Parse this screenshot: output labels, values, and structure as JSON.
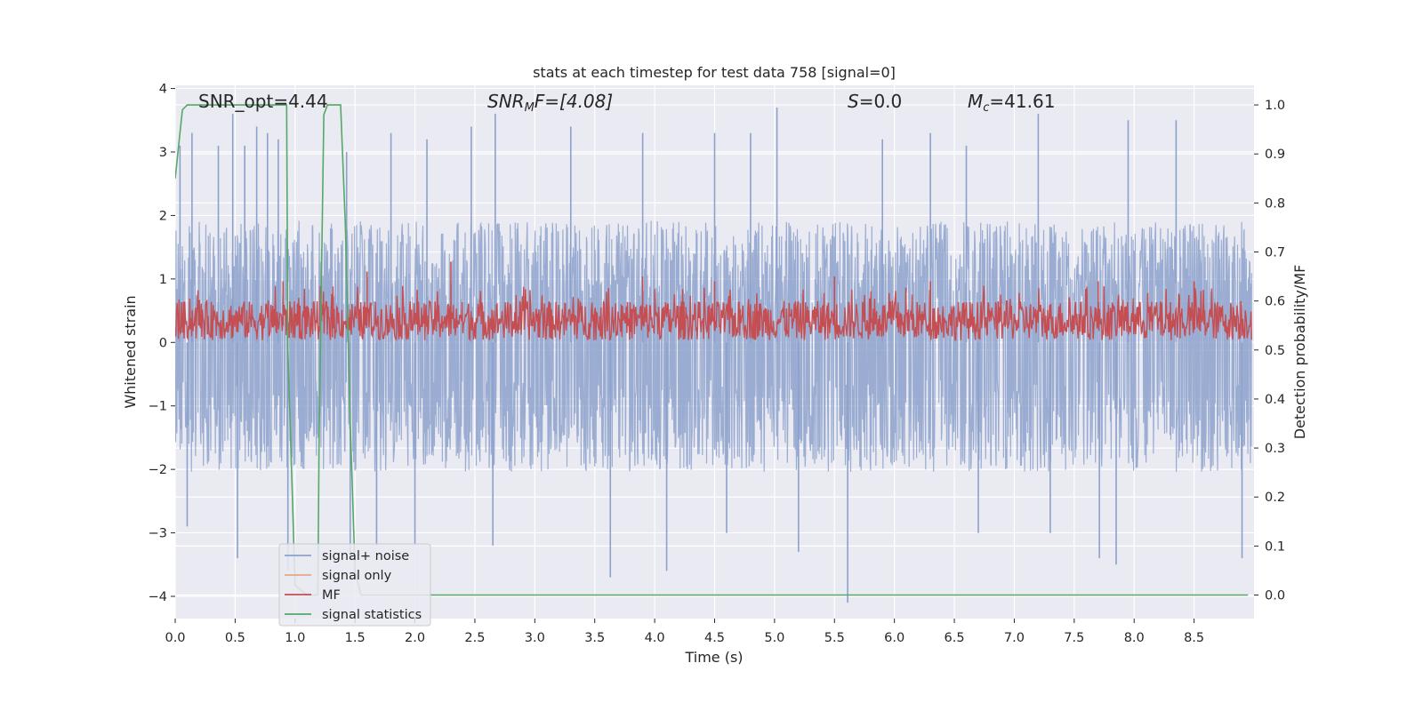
{
  "chart_data": {
    "type": "line",
    "title": "stats at each timestep for test data 758 [signal=0]",
    "xlabel": "Time (s)",
    "ylabel": "Whitened strain",
    "ylabel_right": "Detection probability/MF",
    "xlim": [
      0.0,
      9.0
    ],
    "ylim": [
      -4.35,
      4.05
    ],
    "ylim_right": [
      -0.048,
      1.04
    ],
    "x_ticks": [
      "0.0",
      "0.5",
      "1.0",
      "1.5",
      "2.0",
      "2.5",
      "3.0",
      "3.5",
      "4.0",
      "4.5",
      "5.0",
      "5.5",
      "6.0",
      "6.5",
      "7.0",
      "7.5",
      "8.0",
      "8.5"
    ],
    "y_ticks": [
      "4",
      "3",
      "2",
      "1",
      "0",
      "−1",
      "−2",
      "−3",
      "−4"
    ],
    "y_ticks_right": [
      "1.0",
      "0.9",
      "0.8",
      "0.7",
      "0.6",
      "0.5",
      "0.4",
      "0.3",
      "0.2",
      "0.1",
      "0.0"
    ],
    "annotations": {
      "snr_opt": "SNR_opt=4.44",
      "snr_mf_name": "SNR",
      "snr_mf_sub": "M",
      "snr_mf_rest": "F=[4.08]",
      "s_name": "S",
      "s_value": "=0.0",
      "mc_name": "M",
      "mc_sub": "c",
      "mc_value": "=41.61"
    },
    "grid": true,
    "legend_position": "lower-left",
    "series": [
      {
        "name": "signal+ noise",
        "color": "#8ca1cb",
        "style": "dense noise trace",
        "typical_range": [
          -1.7,
          1.6
        ],
        "positive_spikes": [
          [
            0.04,
            3.1
          ],
          [
            0.14,
            3.3
          ],
          [
            0.36,
            3.1
          ],
          [
            0.48,
            3.6
          ],
          [
            0.58,
            3.1
          ],
          [
            0.68,
            3.4
          ],
          [
            0.77,
            3.3
          ],
          [
            0.86,
            3.2
          ],
          [
            1.43,
            3.0
          ],
          [
            1.8,
            3.3
          ],
          [
            2.1,
            3.2
          ],
          [
            2.47,
            3.4
          ],
          [
            2.67,
            3.6
          ],
          [
            3.3,
            3.4
          ],
          [
            3.9,
            3.3
          ],
          [
            4.5,
            3.3
          ],
          [
            4.8,
            3.3
          ],
          [
            5.02,
            3.7
          ],
          [
            5.9,
            3.2
          ],
          [
            6.3,
            3.3
          ],
          [
            6.6,
            3.1
          ],
          [
            7.2,
            3.6
          ],
          [
            7.95,
            3.5
          ],
          [
            8.35,
            3.5
          ]
        ],
        "negative_spikes": [
          [
            0.1,
            -2.9
          ],
          [
            0.52,
            -3.4
          ],
          [
            0.94,
            -3.6
          ],
          [
            1.46,
            -3.4
          ],
          [
            1.68,
            -3.2
          ],
          [
            2.0,
            -3.2
          ],
          [
            2.65,
            -3.2
          ],
          [
            3.63,
            -3.7
          ],
          [
            4.1,
            -3.6
          ],
          [
            4.6,
            -3.0
          ],
          [
            5.2,
            -3.3
          ],
          [
            5.61,
            -4.1
          ],
          [
            6.7,
            -3.0
          ],
          [
            7.3,
            -3.0
          ],
          [
            7.71,
            -3.4
          ],
          [
            7.85,
            -3.5
          ],
          [
            8.9,
            -3.4
          ]
        ]
      },
      {
        "name": "signal only",
        "color": "#e5a888",
        "values": []
      },
      {
        "name": "MF",
        "color": "#c44e52",
        "style": "noisy band",
        "typical_range_right": [
          0.52,
          0.6
        ],
        "peaks_right": [
          [
            0.9,
            0.64
          ],
          [
            1.6,
            0.66
          ],
          [
            2.3,
            0.68
          ],
          [
            3.9,
            0.65
          ],
          [
            4.5,
            0.64
          ],
          [
            5.5,
            0.65
          ],
          [
            6.3,
            0.64
          ],
          [
            7.7,
            0.64
          ],
          [
            8.5,
            0.64
          ]
        ]
      },
      {
        "name": "signal statistics",
        "color": "#55a868",
        "x": [
          0.0,
          0.06,
          0.1,
          0.2,
          0.5,
          0.93,
          0.94,
          1.0,
          1.1,
          1.19,
          1.2,
          1.24,
          1.27,
          1.3,
          1.36,
          1.38,
          1.42,
          1.46,
          1.5,
          1.55,
          1.65,
          2.0,
          4.0,
          6.0,
          8.0,
          8.95
        ],
        "y": [
          0.85,
          0.99,
          1.0,
          1.0,
          1.0,
          1.0,
          0.5,
          0.02,
          0.0,
          0.0,
          0.3,
          0.98,
          1.0,
          1.0,
          1.0,
          1.0,
          0.75,
          0.35,
          0.05,
          0.0,
          0.0,
          0.0,
          0.0,
          0.0,
          0.0,
          0.0
        ]
      }
    ]
  }
}
